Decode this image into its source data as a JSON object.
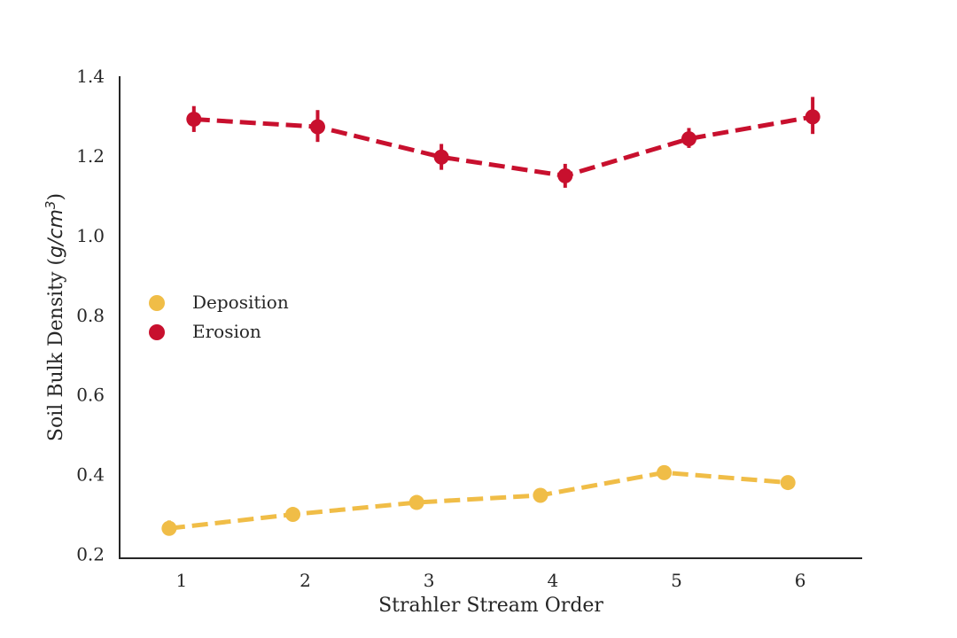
{
  "chart_data": {
    "type": "line",
    "title": "",
    "xlabel": "Strahler Stream Order",
    "ylabel_prefix": "Soil Bulk Density (",
    "ylabel_unit": "g/cm",
    "ylabel_exp": "3",
    "ylabel_suffix": ")",
    "x": [
      1,
      2,
      3,
      4,
      5,
      6
    ],
    "x_ticks": [
      "1",
      "2",
      "3",
      "4",
      "5",
      "6"
    ],
    "xlim": [
      0.5,
      6.5
    ],
    "ylim": [
      0.19,
      1.4
    ],
    "y_ticks": [
      "0.2",
      "0.4",
      "0.6",
      "0.8",
      "1.0",
      "1.2",
      "1.4"
    ],
    "grid": false,
    "legend_position": "center-left",
    "series": [
      {
        "name": "Deposition",
        "color": "#F0BD47",
        "offset": -0.1,
        "values": [
          0.265,
          0.3,
          0.33,
          0.348,
          0.405,
          0.38
        ],
        "errors": [
          [
            0.255,
            0.285
          ],
          null,
          null,
          null,
          null,
          null
        ]
      },
      {
        "name": "Erosion",
        "color": "#C8102E",
        "offset": 0.1,
        "values": [
          1.292,
          1.273,
          1.197,
          1.15,
          1.243,
          1.298
        ],
        "errors": [
          [
            1.26,
            1.325
          ],
          [
            1.235,
            1.315
          ],
          [
            1.165,
            1.23
          ],
          [
            1.12,
            1.18
          ],
          [
            1.22,
            1.27
          ],
          [
            1.255,
            1.348
          ]
        ]
      }
    ]
  }
}
